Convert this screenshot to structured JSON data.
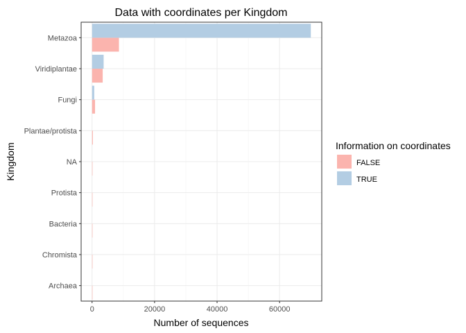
{
  "chart_data": {
    "type": "bar",
    "orientation": "horizontal",
    "title": "Data with coordinates per Kingdom",
    "xlabel": "Number of sequences",
    "ylabel": "Kingdom",
    "categories": [
      "Metazoa",
      "Viridiplantae",
      "Fungi",
      "Plantae/protista",
      "NA",
      "Protista",
      "Bacteria",
      "Chromista",
      "Archaea"
    ],
    "series": [
      {
        "name": "FALSE",
        "color": "#FBB4AE",
        "values": [
          8600,
          3400,
          950,
          250,
          40,
          30,
          20,
          15,
          5
        ]
      },
      {
        "name": "TRUE",
        "color": "#B3CDE3",
        "values": [
          70000,
          3700,
          700,
          0,
          0,
          0,
          0,
          0,
          0
        ]
      }
    ],
    "xticks": [
      0,
      20000,
      40000,
      60000
    ],
    "xtick_labels": [
      "0",
      "20000",
      "40000",
      "60000"
    ],
    "xlim": [
      -3500,
      73500
    ],
    "grid": true,
    "legend": {
      "title": "Information on coordinates",
      "position": "right",
      "entries": [
        "FALSE",
        "TRUE"
      ]
    }
  }
}
